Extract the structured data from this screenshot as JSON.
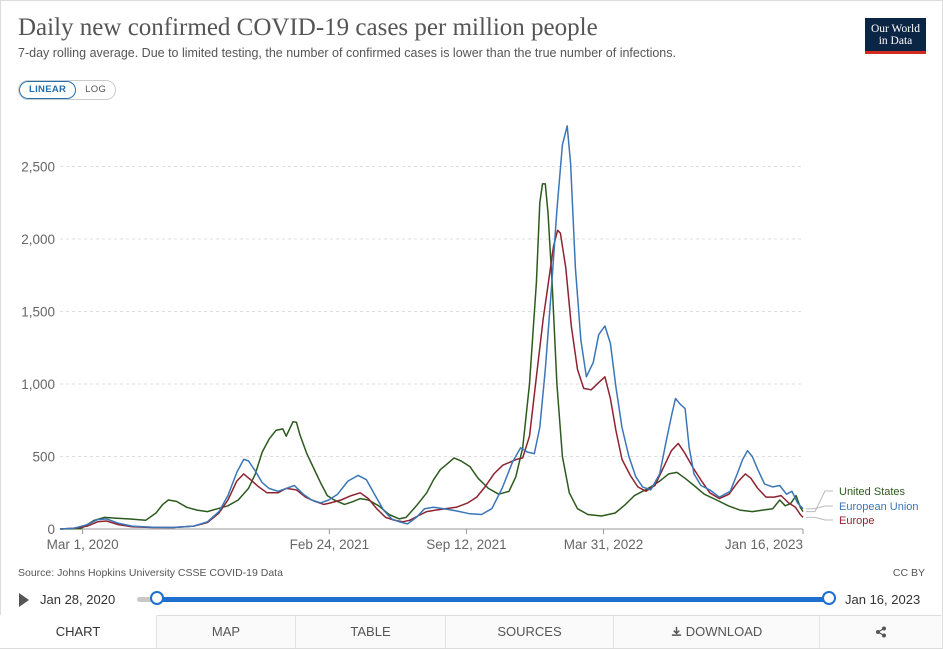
{
  "header": {
    "title": "Daily new confirmed COVID-19 cases per million people",
    "subtitle": "7-day rolling average. Due to limited testing, the number of confirmed cases is lower than the true number of infections.",
    "logo_line1": "Our World",
    "logo_line2": "in Data"
  },
  "scale": {
    "linear_label": "LINEAR",
    "log_label": "LOG",
    "selected": "LINEAR"
  },
  "footer": {
    "source": "Source: Johns Hopkins University CSSE COVID-19 Data",
    "license": "CC BY"
  },
  "timeline": {
    "start_label": "Jan 28, 2020",
    "end_label": "Jan 16, 2023"
  },
  "tabs": [
    {
      "label": "CHART",
      "active": true
    },
    {
      "label": "MAP",
      "active": false
    },
    {
      "label": "TABLE",
      "active": false
    },
    {
      "label": "SOURCES",
      "active": false
    },
    {
      "label": "DOWNLOAD",
      "active": false
    },
    {
      "label": "",
      "icon": "share-icon",
      "active": false
    }
  ],
  "colors": {
    "united_states": "#2d5a1e",
    "european_union": "#3b76b6",
    "europe": "#8e2331",
    "grid": "#dddddd",
    "axis_text": "#666666"
  },
  "chart_data": {
    "type": "line",
    "title": "Daily new confirmed COVID-19 cases per million people",
    "xlabel": "",
    "ylabel": "",
    "x_domain_days": [
      0,
      1084
    ],
    "x_axis_start_date": "Jan 28, 2020",
    "ylim": [
      0,
      2800
    ],
    "yticks": [
      0,
      500,
      1000,
      1500,
      2000,
      2500
    ],
    "ytick_labels": [
      "0",
      "500",
      "1,000",
      "1,500",
      "2,000",
      "2,500"
    ],
    "xticks": [
      {
        "day": 33,
        "label": "Mar 1, 2020"
      },
      {
        "day": 393,
        "label": "Feb 24, 2021"
      },
      {
        "day": 593,
        "label": "Sep 12, 2021"
      },
      {
        "day": 793,
        "label": "Mar 31, 2022"
      },
      {
        "day": 1084,
        "label": "Jan 16, 2023"
      }
    ],
    "grid": "horizontal",
    "series": [
      {
        "name": "United States",
        "color_key": "united_states",
        "points": [
          [
            0,
            0
          ],
          [
            30,
            3
          ],
          [
            50,
            60
          ],
          [
            65,
            80
          ],
          [
            80,
            75
          ],
          [
            100,
            70
          ],
          [
            125,
            60
          ],
          [
            140,
            110
          ],
          [
            150,
            170
          ],
          [
            158,
            200
          ],
          [
            170,
            190
          ],
          [
            185,
            150
          ],
          [
            200,
            130
          ],
          [
            215,
            120
          ],
          [
            230,
            140
          ],
          [
            245,
            160
          ],
          [
            260,
            200
          ],
          [
            275,
            280
          ],
          [
            285,
            380
          ],
          [
            295,
            530
          ],
          [
            305,
            620
          ],
          [
            315,
            680
          ],
          [
            325,
            690
          ],
          [
            330,
            640
          ],
          [
            340,
            740
          ],
          [
            345,
            735
          ],
          [
            350,
            650
          ],
          [
            360,
            520
          ],
          [
            372,
            400
          ],
          [
            380,
            320
          ],
          [
            390,
            230
          ],
          [
            400,
            200
          ],
          [
            415,
            170
          ],
          [
            428,
            190
          ],
          [
            438,
            210
          ],
          [
            450,
            200
          ],
          [
            465,
            160
          ],
          [
            480,
            100
          ],
          [
            495,
            70
          ],
          [
            505,
            80
          ],
          [
            520,
            160
          ],
          [
            535,
            250
          ],
          [
            545,
            340
          ],
          [
            555,
            410
          ],
          [
            565,
            450
          ],
          [
            575,
            490
          ],
          [
            585,
            470
          ],
          [
            598,
            430
          ],
          [
            610,
            350
          ],
          [
            625,
            280
          ],
          [
            640,
            240
          ],
          [
            655,
            260
          ],
          [
            665,
            360
          ],
          [
            675,
            560
          ],
          [
            685,
            1000
          ],
          [
            695,
            1700
          ],
          [
            700,
            2250
          ],
          [
            704,
            2380
          ],
          [
            708,
            2380
          ],
          [
            712,
            2180
          ],
          [
            718,
            1700
          ],
          [
            725,
            1000
          ],
          [
            733,
            500
          ],
          [
            743,
            250
          ],
          [
            755,
            140
          ],
          [
            770,
            100
          ],
          [
            790,
            90
          ],
          [
            810,
            110
          ],
          [
            825,
            170
          ],
          [
            838,
            230
          ],
          [
            850,
            260
          ],
          [
            862,
            290
          ],
          [
            875,
            330
          ],
          [
            888,
            380
          ],
          [
            900,
            390
          ],
          [
            912,
            350
          ],
          [
            925,
            300
          ],
          [
            940,
            240
          ],
          [
            958,
            200
          ],
          [
            975,
            160
          ],
          [
            992,
            130
          ],
          [
            1010,
            120
          ],
          [
            1025,
            130
          ],
          [
            1040,
            140
          ],
          [
            1050,
            200
          ],
          [
            1058,
            160
          ],
          [
            1066,
            175
          ],
          [
            1074,
            230
          ],
          [
            1080,
            150
          ],
          [
            1084,
            120
          ]
        ]
      },
      {
        "name": "European Union",
        "color_key": "european_union",
        "points": [
          [
            0,
            0
          ],
          [
            20,
            5
          ],
          [
            40,
            30
          ],
          [
            55,
            65
          ],
          [
            68,
            70
          ],
          [
            85,
            40
          ],
          [
            105,
            20
          ],
          [
            135,
            12
          ],
          [
            165,
            10
          ],
          [
            195,
            20
          ],
          [
            215,
            50
          ],
          [
            232,
            120
          ],
          [
            245,
            230
          ],
          [
            258,
            390
          ],
          [
            268,
            480
          ],
          [
            275,
            470
          ],
          [
            285,
            400
          ],
          [
            295,
            320
          ],
          [
            305,
            280
          ],
          [
            318,
            260
          ],
          [
            330,
            280
          ],
          [
            342,
            300
          ],
          [
            355,
            240
          ],
          [
            367,
            200
          ],
          [
            380,
            180
          ],
          [
            392,
            200
          ],
          [
            405,
            240
          ],
          [
            420,
            330
          ],
          [
            435,
            370
          ],
          [
            447,
            340
          ],
          [
            460,
            230
          ],
          [
            472,
            130
          ],
          [
            484,
            70
          ],
          [
            495,
            50
          ],
          [
            507,
            35
          ],
          [
            520,
            80
          ],
          [
            532,
            140
          ],
          [
            545,
            150
          ],
          [
            560,
            140
          ],
          [
            578,
            125
          ],
          [
            598,
            105
          ],
          [
            615,
            100
          ],
          [
            630,
            140
          ],
          [
            645,
            280
          ],
          [
            660,
            460
          ],
          [
            672,
            560
          ],
          [
            682,
            530
          ],
          [
            692,
            520
          ],
          [
            700,
            700
          ],
          [
            708,
            1100
          ],
          [
            716,
            1600
          ],
          [
            725,
            2200
          ],
          [
            733,
            2650
          ],
          [
            740,
            2780
          ],
          [
            745,
            2520
          ],
          [
            752,
            1800
          ],
          [
            760,
            1300
          ],
          [
            768,
            1050
          ],
          [
            778,
            1150
          ],
          [
            786,
            1340
          ],
          [
            795,
            1400
          ],
          [
            803,
            1280
          ],
          [
            811,
            980
          ],
          [
            820,
            700
          ],
          [
            830,
            500
          ],
          [
            840,
            360
          ],
          [
            850,
            290
          ],
          [
            862,
            270
          ],
          [
            875,
            380
          ],
          [
            885,
            620
          ],
          [
            893,
            800
          ],
          [
            898,
            900
          ],
          [
            905,
            860
          ],
          [
            912,
            830
          ],
          [
            918,
            560
          ],
          [
            925,
            380
          ],
          [
            935,
            300
          ],
          [
            948,
            270
          ],
          [
            962,
            220
          ],
          [
            978,
            260
          ],
          [
            988,
            380
          ],
          [
            996,
            480
          ],
          [
            1003,
            540
          ],
          [
            1010,
            500
          ],
          [
            1018,
            410
          ],
          [
            1028,
            310
          ],
          [
            1040,
            290
          ],
          [
            1050,
            300
          ],
          [
            1060,
            240
          ],
          [
            1068,
            260
          ],
          [
            1076,
            180
          ],
          [
            1084,
            140
          ]
        ]
      },
      {
        "name": "Europe",
        "color_key": "europe",
        "points": [
          [
            0,
            0
          ],
          [
            20,
            5
          ],
          [
            40,
            20
          ],
          [
            55,
            50
          ],
          [
            68,
            55
          ],
          [
            85,
            30
          ],
          [
            105,
            15
          ],
          [
            135,
            10
          ],
          [
            165,
            10
          ],
          [
            195,
            20
          ],
          [
            215,
            45
          ],
          [
            232,
            110
          ],
          [
            245,
            200
          ],
          [
            258,
            330
          ],
          [
            268,
            380
          ],
          [
            278,
            340
          ],
          [
            290,
            290
          ],
          [
            302,
            250
          ],
          [
            318,
            250
          ],
          [
            330,
            280
          ],
          [
            345,
            270
          ],
          [
            358,
            220
          ],
          [
            372,
            190
          ],
          [
            385,
            170
          ],
          [
            395,
            180
          ],
          [
            410,
            200
          ],
          [
            425,
            230
          ],
          [
            438,
            250
          ],
          [
            450,
            210
          ],
          [
            462,
            140
          ],
          [
            475,
            80
          ],
          [
            488,
            60
          ],
          [
            500,
            50
          ],
          [
            510,
            60
          ],
          [
            522,
            90
          ],
          [
            535,
            120
          ],
          [
            548,
            130
          ],
          [
            562,
            140
          ],
          [
            578,
            150
          ],
          [
            595,
            180
          ],
          [
            608,
            220
          ],
          [
            620,
            290
          ],
          [
            633,
            380
          ],
          [
            646,
            440
          ],
          [
            656,
            460
          ],
          [
            666,
            480
          ],
          [
            675,
            490
          ],
          [
            685,
            640
          ],
          [
            695,
            1050
          ],
          [
            705,
            1450
          ],
          [
            712,
            1680
          ],
          [
            720,
            1950
          ],
          [
            726,
            2060
          ],
          [
            730,
            2040
          ],
          [
            738,
            1800
          ],
          [
            746,
            1400
          ],
          [
            755,
            1100
          ],
          [
            764,
            970
          ],
          [
            775,
            960
          ],
          [
            786,
            1010
          ],
          [
            795,
            1050
          ],
          [
            803,
            900
          ],
          [
            811,
            680
          ],
          [
            820,
            480
          ],
          [
            832,
            370
          ],
          [
            843,
            290
          ],
          [
            855,
            260
          ],
          [
            868,
            300
          ],
          [
            880,
            420
          ],
          [
            892,
            540
          ],
          [
            902,
            590
          ],
          [
            912,
            520
          ],
          [
            924,
            420
          ],
          [
            936,
            330
          ],
          [
            948,
            250
          ],
          [
            962,
            210
          ],
          [
            976,
            240
          ],
          [
            990,
            330
          ],
          [
            1000,
            380
          ],
          [
            1008,
            350
          ],
          [
            1018,
            280
          ],
          [
            1030,
            220
          ],
          [
            1042,
            220
          ],
          [
            1052,
            230
          ],
          [
            1063,
            180
          ],
          [
            1073,
            150
          ],
          [
            1080,
            100
          ],
          [
            1084,
            80
          ]
        ]
      }
    ],
    "legend": {
      "position": "right",
      "entries": [
        "United States",
        "European Union",
        "Europe"
      ]
    }
  }
}
